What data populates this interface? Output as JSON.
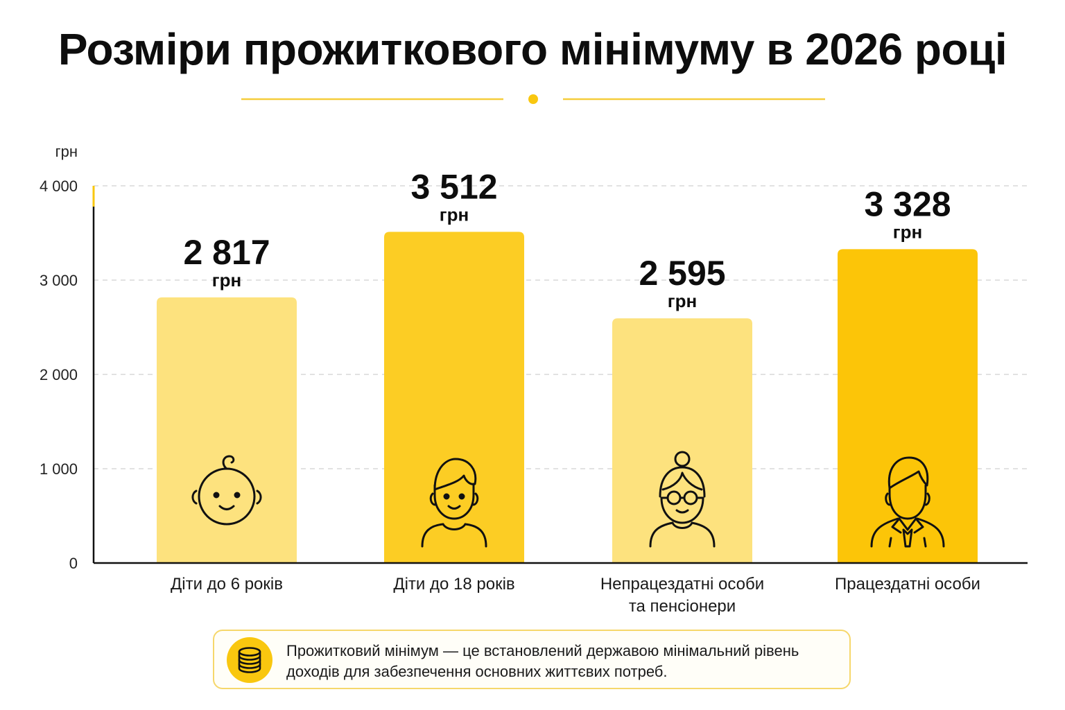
{
  "title": "Розміри прожиткового мінімуму в 2026 році",
  "colors": {
    "bar_light": "#fde27e",
    "bar_mid": "#fccd24",
    "bar_dark": "#fcc508",
    "accent": "#f9c70f",
    "axis": "#111111",
    "grid": "#d9d9d9"
  },
  "chart_data": {
    "type": "bar",
    "ylabel": "грн",
    "ylim": [
      0,
      4000
    ],
    "yticks": [
      0,
      1000,
      2000,
      3000,
      4000
    ],
    "ytick_labels": [
      "0",
      "1 000",
      "2 000",
      "3 000",
      "4 000"
    ],
    "grid": true,
    "categories": [
      [
        "Діти до 6 років"
      ],
      [
        "Діти до 18 років"
      ],
      [
        "Непрацездатні особи",
        "та пенсіонери"
      ],
      [
        "Працездатні особи"
      ]
    ],
    "values": [
      2817,
      3512,
      2595,
      3328
    ],
    "value_labels": [
      "2 817",
      "3 512",
      "2 595",
      "3 328"
    ],
    "value_unit": "грн",
    "bar_colors": [
      "#fde27e",
      "#fccd24",
      "#fde27e",
      "#fcc508"
    ],
    "icons": [
      "baby-icon",
      "boy-icon",
      "grandmother-icon",
      "businessman-icon"
    ]
  },
  "note": {
    "icon": "coins-stack-icon",
    "lines": [
      "Прожитковий мінімум — це встановлений державою мінімальний рівень",
      "доходів для забезпечення основних життєвих потреб."
    ]
  }
}
